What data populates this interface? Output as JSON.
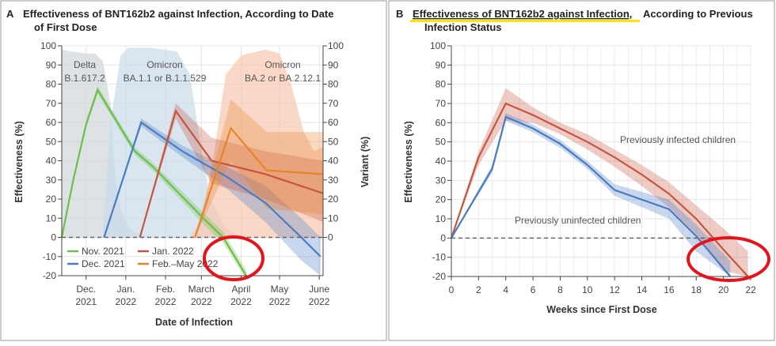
{
  "chart_data": [
    {
      "type": "line",
      "panel_letter": "A",
      "title_line1": "Effectiveness of BNT162b2 against Infection, According to Date",
      "title_line2": "of First Dose",
      "xlabel": "Date of Infection",
      "ylabel": "Effectiveness (%)",
      "y2label": "Variant (%)",
      "ylim": [
        -20,
        100
      ],
      "y2lim": [
        0,
        100
      ],
      "yticks": [
        "100",
        "90",
        "80",
        "70",
        "60",
        "50",
        "40",
        "30",
        "20",
        "10",
        "0",
        "-10",
        "-20"
      ],
      "y2ticks": [
        "100",
        "90",
        "80",
        "70",
        "60",
        "50",
        "40",
        "30",
        "20",
        "10",
        "0"
      ],
      "xticks": [
        {
          "date": "2021-12-01",
          "l1": "Dec.",
          "l2": "2021"
        },
        {
          "date": "2022-01-01",
          "l1": "Jan.",
          "l2": "2022"
        },
        {
          "date": "2022-02-01",
          "l1": "Feb.",
          "l2": "2022"
        },
        {
          "date": "2022-03-01",
          "l1": "March",
          "l2": "2022"
        },
        {
          "date": "2022-04-01",
          "l1": "April",
          "l2": "2022"
        },
        {
          "date": "2022-05-01",
          "l1": "May",
          "l2": "2022"
        },
        {
          "date": "2022-06-01",
          "l1": "June",
          "l2": "2022"
        }
      ],
      "xlim": [
        "2021-11-12",
        "2022-06-04"
      ],
      "grid": true,
      "reference_line": 0,
      "legend_placement": "bottom-left",
      "variants": [
        {
          "name_l1": "Delta",
          "name_l2": "B.1.617.2",
          "color": "#cfd6da",
          "dates": [
            "2021-11-12",
            "2021-11-20",
            "2021-12-01",
            "2021-12-08",
            "2021-12-14",
            "2021-12-20",
            "2021-12-24",
            "2021-12-28",
            "2022-01-03",
            "2022-01-10",
            "2022-01-20"
          ],
          "values": [
            98,
            97,
            96,
            96,
            92,
            70,
            30,
            15,
            5,
            2,
            0
          ]
        },
        {
          "name_l1": "Omicron",
          "name_l2": "BA.1.1 or B.1.1.529",
          "color": "#c9dcea",
          "dates": [
            "2021-12-14",
            "2021-12-20",
            "2021-12-28",
            "2022-01-03",
            "2022-01-20",
            "2022-02-10",
            "2022-02-20",
            "2022-02-28",
            "2022-03-08",
            "2022-03-20",
            "2022-04-01"
          ],
          "values": [
            0,
            60,
            95,
            99,
            99,
            97,
            85,
            50,
            20,
            5,
            0
          ]
        },
        {
          "name_l1": "Omicron",
          "name_l2": "BA.2 or BA.2.12.1",
          "color": "#f7c7b0",
          "dates": [
            "2022-02-20",
            "2022-03-01",
            "2022-03-10",
            "2022-03-20",
            "2022-04-01",
            "2022-04-20",
            "2022-05-01",
            "2022-05-10",
            "2022-05-20",
            "2022-05-28",
            "2022-06-04"
          ],
          "values": [
            0,
            10,
            40,
            85,
            95,
            98,
            96,
            80,
            55,
            45,
            47
          ]
        }
      ],
      "series": [
        {
          "name": "Nov. 2021",
          "color": "#6cc04a",
          "dates": [
            "2021-11-12",
            "2021-11-21",
            "2021-12-01",
            "2021-12-10",
            "2022-01-08",
            "2022-01-22",
            "2022-03-04",
            "2022-03-18",
            "2022-04-05"
          ],
          "values": [
            0,
            30,
            59,
            77,
            45,
            37,
            9,
            0,
            -20
          ],
          "lower": [
            0,
            28,
            57,
            75,
            43,
            35,
            6,
            -3,
            -22
          ],
          "upper": [
            0,
            32,
            61,
            79,
            47,
            39,
            12,
            3,
            -17
          ]
        },
        {
          "name": "Dec. 2021",
          "color": "#4a7cc4",
          "dates": [
            "2021-12-15",
            "2022-01-13",
            "2022-02-14",
            "2022-03-20",
            "2022-04-20",
            "2022-05-18",
            "2022-06-02"
          ],
          "values": [
            0,
            60,
            45,
            32,
            18,
            0,
            -10
          ],
          "lower": [
            0,
            58,
            42,
            26,
            8,
            -12,
            -20
          ],
          "upper": [
            0,
            62,
            48,
            37,
            27,
            10,
            0
          ]
        },
        {
          "name": "Jan. 2022",
          "color": "#c6553e",
          "dates": [
            "2022-01-12",
            "2022-02-09",
            "2022-03-09",
            "2022-04-20",
            "2022-06-04"
          ],
          "values": [
            0,
            66,
            40,
            33,
            23
          ],
          "lower": [
            0,
            62,
            28,
            20,
            8
          ],
          "upper": [
            0,
            70,
            52,
            45,
            40
          ]
        },
        {
          "name": "Feb.–May 2022",
          "color": "#e8832a",
          "dates": [
            "2022-02-24",
            "2022-03-24",
            "2022-04-21",
            "2022-06-04"
          ],
          "values": [
            0,
            57,
            35,
            33
          ],
          "lower": [
            0,
            40,
            15,
            12
          ],
          "upper": [
            0,
            72,
            55,
            55
          ]
        }
      ]
    },
    {
      "type": "line",
      "panel_letter": "B",
      "title_line1_underlined": "Effectiveness of BNT162b2 against Infection,",
      "title_line1_rest": "According to Previous",
      "title_line2": "Infection Status",
      "xlabel": "Weeks since First Dose",
      "ylabel": "Effectiveness (%)",
      "xlim": [
        0,
        22
      ],
      "ylim": [
        -20,
        100
      ],
      "xticks": [
        "0",
        "2",
        "4",
        "6",
        "8",
        "10",
        "12",
        "14",
        "16",
        "18",
        "20",
        "22"
      ],
      "yticks": [
        "100",
        "90",
        "80",
        "70",
        "60",
        "50",
        "40",
        "30",
        "20",
        "10",
        "0",
        "-10",
        "-20"
      ],
      "grid": true,
      "reference_line": 0,
      "series": [
        {
          "name": "Previously infected children",
          "color": "#c6553e",
          "x": [
            0,
            2,
            4,
            6,
            8,
            10,
            12,
            14,
            16,
            18,
            20,
            21.8
          ],
          "values": [
            0,
            42,
            70,
            64,
            57,
            50,
            42,
            33,
            23,
            10,
            -6,
            -20
          ],
          "lower": [
            0,
            38,
            61,
            60,
            54,
            46,
            37,
            27,
            16,
            2,
            -17,
            -20
          ],
          "upper": [
            0,
            45,
            78,
            68,
            60,
            54,
            46,
            38,
            29,
            17,
            5,
            -7
          ]
        },
        {
          "name": "Previously uninfected children",
          "color": "#4a7cc4",
          "x": [
            0,
            3,
            4,
            6,
            8,
            10,
            12,
            14,
            16,
            18,
            20.5
          ],
          "values": [
            0,
            36,
            63,
            57,
            49,
            38,
            25,
            20,
            15,
            1,
            -20
          ],
          "lower": [
            0,
            34,
            61,
            55,
            47,
            36,
            22,
            16,
            10,
            -7,
            -20
          ],
          "upper": [
            0,
            38,
            65,
            59,
            51,
            40,
            28,
            24,
            20,
            7,
            -12
          ]
        }
      ]
    }
  ],
  "annotations": {
    "highlight_color": "#ffe600",
    "circle_color": "#e8121b"
  }
}
